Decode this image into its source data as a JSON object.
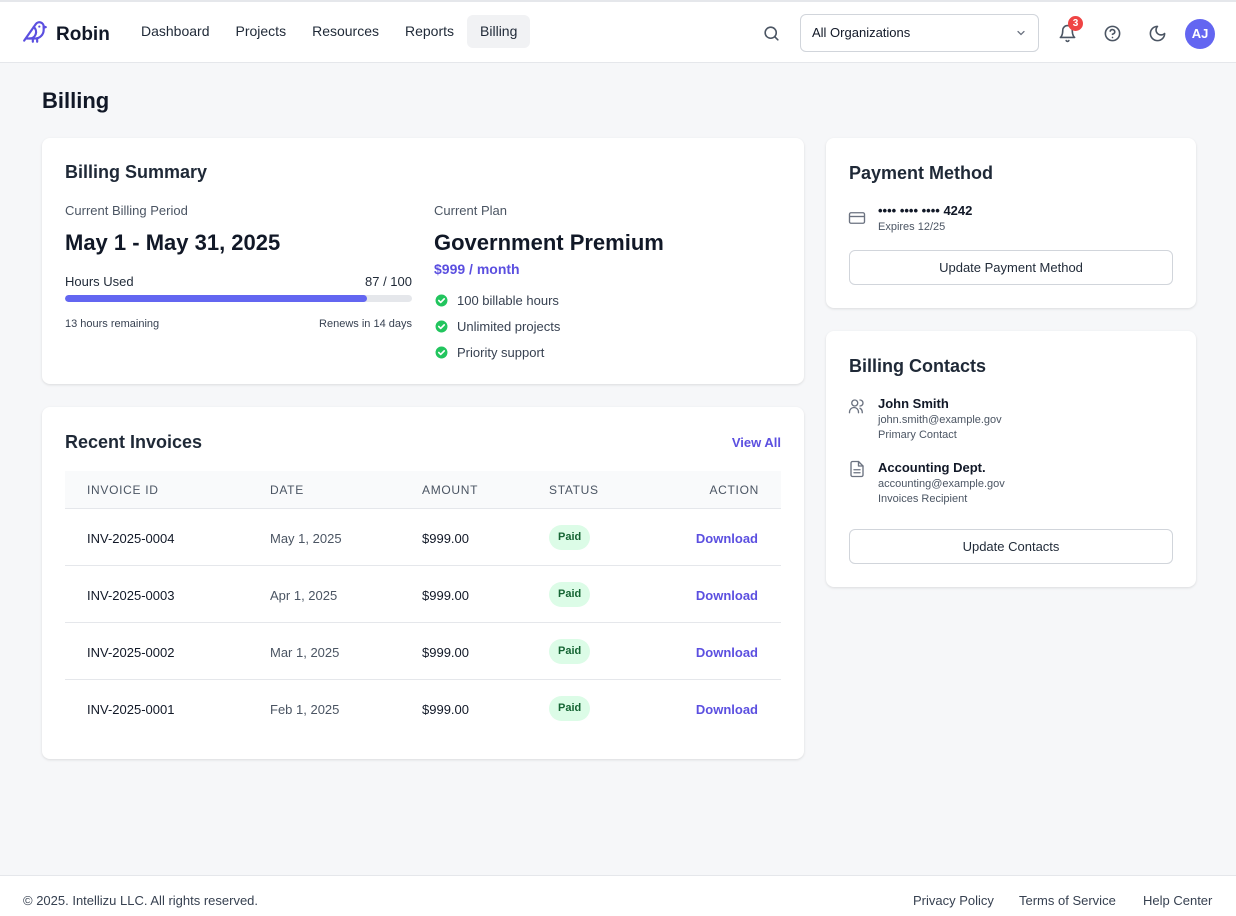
{
  "brand": {
    "name": "Robin",
    "logo_icon": "bird-icon"
  },
  "nav": {
    "items": [
      {
        "label": "Dashboard",
        "active": false
      },
      {
        "label": "Projects",
        "active": false
      },
      {
        "label": "Resources",
        "active": false
      },
      {
        "label": "Reports",
        "active": false
      },
      {
        "label": "Billing",
        "active": true
      }
    ]
  },
  "header": {
    "org_select": "All Organizations",
    "notifications_count": "3",
    "avatar_initials": "AJ"
  },
  "page": {
    "title": "Billing"
  },
  "summary": {
    "title": "Billing Summary",
    "period_label": "Current Billing Period",
    "period_value": "May 1 - May 31, 2025",
    "hours_label": "Hours Used",
    "hours_value": "87 / 100",
    "hours_progress_percent": 87,
    "remaining": "13 hours remaining",
    "renews": "Renews in 14 days",
    "plan_label": "Current Plan",
    "plan_name": "Government Premium",
    "plan_price": "$999 / month",
    "features": [
      "100 billable hours",
      "Unlimited projects",
      "Priority support"
    ]
  },
  "invoices": {
    "title": "Recent Invoices",
    "view_all": "View All",
    "columns": {
      "id": "INVOICE ID",
      "date": "DATE",
      "amount": "AMOUNT",
      "status": "STATUS",
      "action": "ACTION"
    },
    "rows": [
      {
        "id": "INV-2025-0004",
        "date": "May 1, 2025",
        "amount": "$999.00",
        "status": "Paid",
        "action": "Download"
      },
      {
        "id": "INV-2025-0003",
        "date": "Apr 1, 2025",
        "amount": "$999.00",
        "status": "Paid",
        "action": "Download"
      },
      {
        "id": "INV-2025-0002",
        "date": "Mar 1, 2025",
        "amount": "$999.00",
        "status": "Paid",
        "action": "Download"
      },
      {
        "id": "INV-2025-0001",
        "date": "Feb 1, 2025",
        "amount": "$999.00",
        "status": "Paid",
        "action": "Download"
      }
    ]
  },
  "payment": {
    "title": "Payment Method",
    "card_number": "•••• •••• •••• 4242",
    "expires": "Expires 12/25",
    "update_button": "Update Payment Method"
  },
  "contacts": {
    "title": "Billing Contacts",
    "items": [
      {
        "name": "John Smith",
        "email": "john.smith@example.gov",
        "role": "Primary Contact",
        "icon": "users-icon"
      },
      {
        "name": "Accounting Dept.",
        "email": "accounting@example.gov",
        "role": "Invoices Recipient",
        "icon": "document-icon"
      }
    ],
    "update_button": "Update Contacts"
  },
  "footer": {
    "copyright": "© 2025. Intellizu LLC. All rights reserved.",
    "links": [
      "Privacy Policy",
      "Terms of Service",
      "Help Center"
    ]
  },
  "colors": {
    "accent": "#6366f1",
    "link": "#5b4fe0",
    "success": "#22c55e",
    "badge": "#ef4444"
  }
}
